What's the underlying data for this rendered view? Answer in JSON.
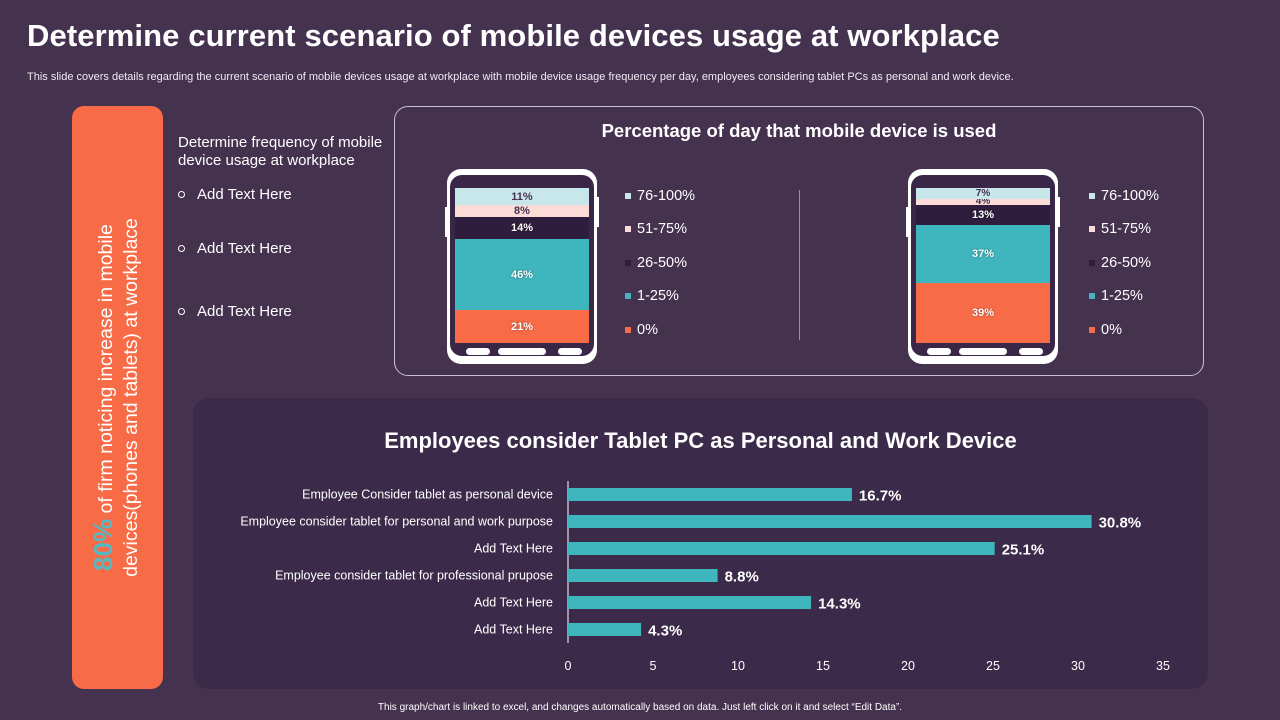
{
  "page": {
    "title": "Determine current scenario of mobile devices usage at workplace",
    "subtitle": "This slide covers details regarding the current scenario of mobile devices usage at workplace with mobile device usage frequency per day,  employees considering tablet PCs as personal and work device.",
    "footer": "This graph/chart is linked to excel, and changes automatically based on data. Just left click on it and select “Edit Data”."
  },
  "side_panel": {
    "highlight": "80%",
    "text_line1": " of firm noticing increase in mobile",
    "text_line2": "devices(phones and tablets) at workplace"
  },
  "frequency": {
    "title": "Determine frequency of mobile device usage at workplace",
    "items": [
      "Add Text Here",
      "Add Text Here",
      "Add Text Here"
    ]
  },
  "colors": {
    "background": "#45324f",
    "accent_orange": "#f86b47",
    "teal": "#3fb6bd",
    "dark_purple": "#2e1d3c",
    "light_pink": "#fbdcd6",
    "light_blue": "#c7e7ea"
  },
  "chart_data": [
    {
      "type": "bar",
      "stacked": true,
      "title": "Percentage of day that mobile device is used",
      "legend_position": "right",
      "categories": [
        "0%",
        "1-25%",
        "26-50%",
        "51-75%",
        "76-100%"
      ],
      "legend": [
        "76-100%",
        "51-75%",
        "26-50%",
        "1-25%",
        "0%"
      ],
      "series_colors": {
        "0%": "#f86b47",
        "1-25%": "#3fb6bd",
        "26-50%": "#2e1d3c",
        "51-75%": "#fbdcd6",
        "76-100%": "#c7e7ea"
      },
      "devices": [
        {
          "name": "device-1",
          "values": [
            21,
            46,
            14,
            8,
            11
          ],
          "labels": [
            "21%",
            "46%",
            "14%",
            "8%",
            "11%"
          ]
        },
        {
          "name": "device-2",
          "values": [
            39,
            37,
            13,
            4,
            7
          ],
          "labels": [
            "39%",
            "37%",
            "13%",
            "4%",
            "7%"
          ]
        }
      ]
    },
    {
      "type": "bar",
      "orientation": "horizontal",
      "title": "Employees consider Tablet PC as Personal and Work Device",
      "categories": [
        "Employee Consider tablet as personal device",
        "Employee consider tablet for personal and work purpose",
        "Add Text Here",
        "Employee consider tablet for professional prupose ",
        "Add Text Here",
        "Add Text Here"
      ],
      "values": [
        16.7,
        30.8,
        25.1,
        8.8,
        14.3,
        4.3
      ],
      "value_labels": [
        "16.7%",
        "30.8%",
        "25.1%",
        "8.8%",
        "14.3%",
        "4.3%"
      ],
      "xlim": [
        0,
        35
      ],
      "xticks": [
        "0",
        "5",
        "10",
        "15",
        "20",
        "25",
        "30",
        "35"
      ],
      "grid": false,
      "color": "#3fb6bd"
    }
  ]
}
